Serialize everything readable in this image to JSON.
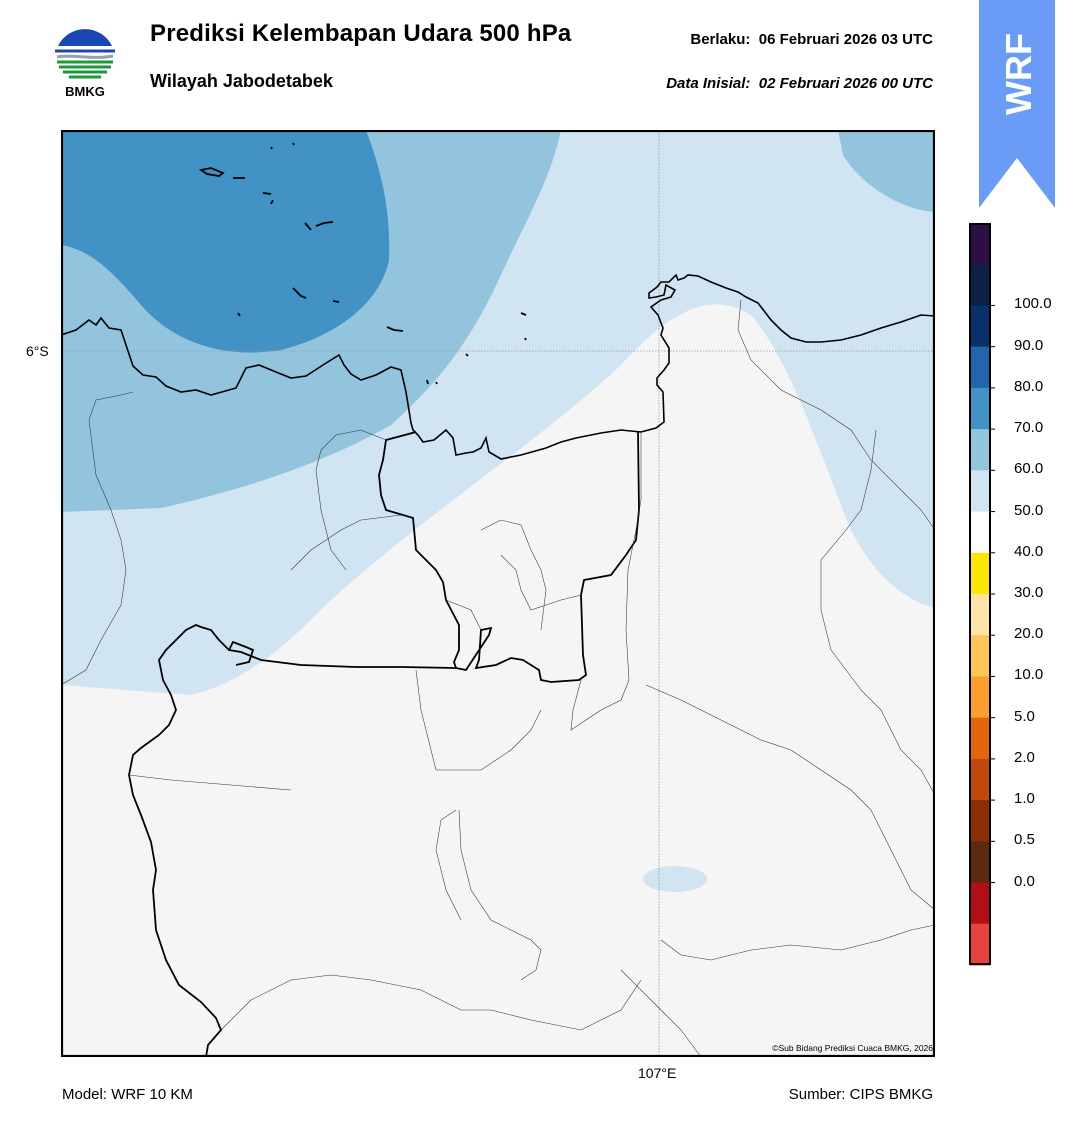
{
  "header": {
    "title": "Prediksi Kelembapan Udara 500 hPa",
    "region": "Wilayah Jabodetabek",
    "valid_label": "Berlaku:",
    "valid_time": "06 Februari 2026 03 UTC",
    "init_label": "Data Inisial:",
    "init_time": "02 Februari 2026 00 UTC"
  },
  "logo": {
    "text": "BMKG",
    "icon": "bmkg-logo-icon"
  },
  "badge": {
    "text": "WRF",
    "color": "#6a9cf7"
  },
  "map": {
    "lat_label": "6°S",
    "lon_label": "107°E",
    "copyright": "©Sub Bidang Prediksi Cuaca BMKG, 2026",
    "fill_colors": {
      "under_50": "#f5f5f5",
      "50_60": "#d0e4f1",
      "60_70": "#93c4de",
      "70_80": "#4292c6"
    }
  },
  "footer": {
    "model": "Model: WRF 10 KM",
    "source": "Sumber: CIPS BMKG"
  },
  "colorbar": {
    "labels": [
      "100.0",
      "90.0",
      "80.0",
      "70.0",
      "60.0",
      "50.0",
      "40.0",
      "30.0",
      "20.0",
      "10.0",
      "5.0",
      "2.0",
      "1.0",
      "0.5",
      "0.0"
    ],
    "colors_top_to_bottom": [
      "#2d0e46",
      "#0d2148",
      "#08306b",
      "#2166ac",
      "#4292c6",
      "#93c4de",
      "#d0e4f1",
      "#ffffff",
      "#fee600",
      "#fde3a7",
      "#fec65a",
      "#fd9e30",
      "#e7640f",
      "#c04a09",
      "#8c2d04",
      "#5c2a0f",
      "#b30f16",
      "#e8423c"
    ]
  }
}
